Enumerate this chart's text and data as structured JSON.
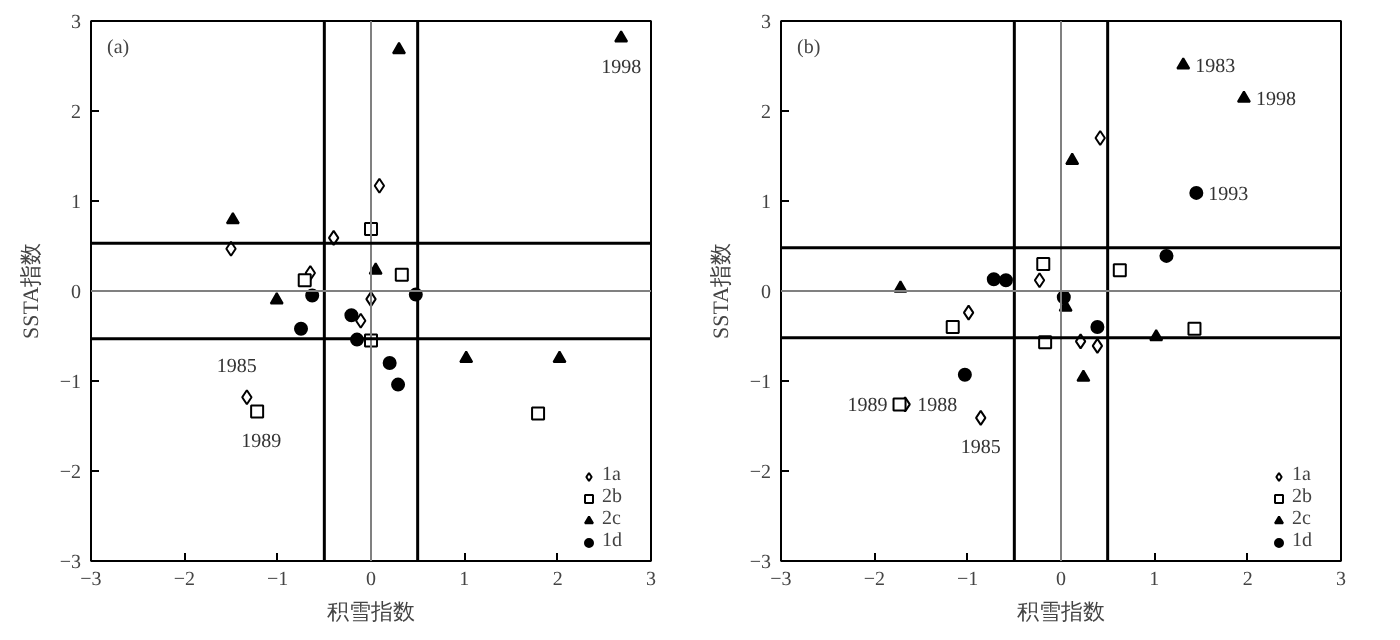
{
  "chart_data": [
    {
      "type": "scatter",
      "xlabel": "积雪指数",
      "ylabel": "SSTA指数",
      "xlim": [
        -3,
        3
      ],
      "ylim": [
        -3,
        3
      ],
      "xticks": [
        -3,
        -2,
        -1,
        0,
        1,
        2,
        3
      ],
      "yticks": [
        -3,
        -2,
        -1,
        0,
        1,
        2,
        3
      ],
      "legend": "bottom right",
      "grid": false,
      "series": [
        {
          "name": "1a",
          "color": "#000000",
          "marker": "diamond",
          "x": [
            -1.5,
            -0.4,
            0.09,
            -0.65,
            0.0,
            -0.11,
            -1.33
          ],
          "values": [
            0.47,
            0.59,
            1.17,
            0.2,
            -0.09,
            -0.33,
            -1.18
          ]
        },
        {
          "name": "2b",
          "color": "#000000",
          "marker": "square",
          "x": [
            0.0,
            0.33,
            -0.71,
            0.0,
            -1.22,
            1.79
          ],
          "values": [
            0.69,
            0.18,
            0.12,
            -0.55,
            -1.34,
            -1.36
          ]
        },
        {
          "name": "2c",
          "color": "#000000",
          "marker": "triangle",
          "x": [
            -1.48,
            -1.01,
            0.3,
            0.05,
            1.02,
            2.02,
            2.68
          ],
          "values": [
            0.79,
            -0.1,
            2.68,
            0.23,
            -0.75,
            -0.75,
            2.81
          ]
        },
        {
          "name": "1d",
          "color": "#000000",
          "marker": "circle",
          "x": [
            -0.63,
            -0.75,
            -0.21,
            -0.15,
            0.2,
            0.29,
            0.48
          ],
          "values": [
            -0.05,
            -0.42,
            -0.27,
            -0.54,
            -0.8,
            -1.04,
            -0.04
          ]
        }
      ],
      "ref_lines": [
        {
          "axis": "x",
          "value": -0.5,
          "color": "#000000"
        },
        {
          "axis": "x",
          "value": 0.5,
          "color": "#000000"
        },
        {
          "axis": "x",
          "value": 0,
          "color": "#808080"
        },
        {
          "axis": "y",
          "value": 0.53,
          "color": "#000000"
        },
        {
          "axis": "y",
          "value": -0.53,
          "color": "#000000"
        },
        {
          "axis": "y",
          "value": 0,
          "color": "#808080"
        }
      ],
      "annotations": [
        "(a)",
        {
          "text": "1998",
          "x": 2.68,
          "y": 2.81
        },
        {
          "text": "1985",
          "x": -1.33,
          "y": -1.18
        },
        {
          "text": "1989",
          "x": -1.22,
          "y": -1.34
        }
      ]
    },
    {
      "type": "scatter",
      "xlabel": "积雪指数",
      "ylabel": "SSTA指数",
      "xlim": [
        -3,
        3
      ],
      "ylim": [
        -3,
        3
      ],
      "xticks": [
        -3,
        -2,
        -1,
        0,
        1,
        2,
        3
      ],
      "yticks": [
        -3,
        -2,
        -1,
        0,
        1,
        2,
        3
      ],
      "legend": "bottom right",
      "grid": false,
      "series": [
        {
          "name": "1a",
          "color": "#000000",
          "marker": "diamond",
          "x": [
            0.42,
            -0.23,
            -0.99,
            0.21,
            0.39,
            -0.86,
            -1.67
          ],
          "values": [
            1.7,
            0.12,
            -0.24,
            -0.56,
            -0.61,
            -1.41,
            -1.26
          ]
        },
        {
          "name": "2b",
          "color": "#000000",
          "marker": "square",
          "x": [
            -0.19,
            0.63,
            -1.16,
            -0.17,
            1.43,
            -1.73
          ],
          "values": [
            0.3,
            0.23,
            -0.4,
            -0.57,
            -0.42,
            -1.26
          ]
        },
        {
          "name": "2c",
          "color": "#000000",
          "marker": "triangle",
          "x": [
            1.31,
            1.96,
            0.12,
            -1.72,
            0.05,
            1.02,
            0.24
          ],
          "values": [
            2.51,
            2.14,
            1.45,
            0.03,
            -0.18,
            -0.51,
            -0.96
          ]
        },
        {
          "name": "1d",
          "color": "#000000",
          "marker": "circle",
          "x": [
            1.45,
            1.13,
            -0.72,
            -0.59,
            0.03,
            0.39,
            -1.03
          ],
          "values": [
            1.09,
            0.39,
            0.13,
            0.12,
            -0.07,
            -0.4,
            -0.93
          ]
        }
      ],
      "ref_lines": [
        {
          "axis": "x",
          "value": -0.5,
          "color": "#000000"
        },
        {
          "axis": "x",
          "value": 0.5,
          "color": "#000000"
        },
        {
          "axis": "x",
          "value": 0,
          "color": "#808080"
        },
        {
          "axis": "y",
          "value": 0.48,
          "color": "#000000"
        },
        {
          "axis": "y",
          "value": -0.52,
          "color": "#000000"
        },
        {
          "axis": "y",
          "value": 0,
          "color": "#808080"
        }
      ],
      "annotations": [
        "(b)",
        {
          "text": "1983",
          "x": 1.31,
          "y": 2.51
        },
        {
          "text": "1998",
          "x": 1.96,
          "y": 2.14
        },
        {
          "text": "1993",
          "x": 1.45,
          "y": 1.09
        },
        {
          "text": "1989",
          "x": -1.73,
          "y": -1.26
        },
        {
          "text": "1988",
          "x": -1.67,
          "y": -1.26
        },
        {
          "text": "1985",
          "x": -0.86,
          "y": -1.41
        }
      ]
    }
  ]
}
